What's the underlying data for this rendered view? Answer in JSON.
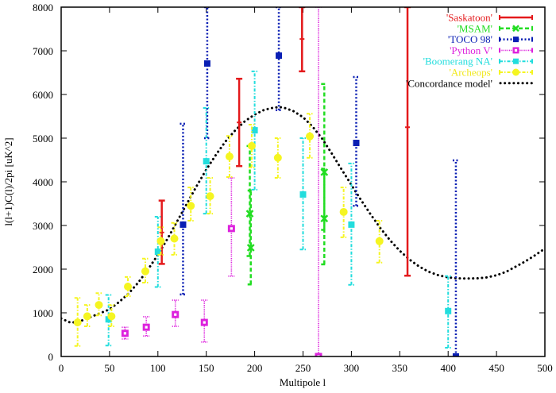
{
  "chart_data": {
    "type": "scatter",
    "title": "",
    "xlabel": "Multipole l",
    "ylabel": "l(l+1)C(l)/2pi [uK^2]",
    "xlim": [
      0,
      500
    ],
    "ylim": [
      0,
      8000
    ],
    "xticks": [
      "0",
      "50",
      "100",
      "150",
      "200",
      "250",
      "300",
      "350",
      "400",
      "450",
      "500"
    ],
    "xtick_values": [
      0,
      50,
      100,
      150,
      200,
      250,
      300,
      350,
      400,
      450,
      500
    ],
    "yticks": [
      "0",
      "1000",
      "2000",
      "3000",
      "4000",
      "5000",
      "6000",
      "7000",
      "8000"
    ],
    "ytick_values": [
      0,
      1000,
      2000,
      3000,
      4000,
      5000,
      6000,
      7000,
      8000
    ],
    "grid": false,
    "legend_position": "top-right",
    "series": [
      {
        "name": "'Saskatoon'",
        "color": "#e41a1c",
        "style": "solid",
        "marker": "tick",
        "points": [
          {
            "x": 104,
            "y": 2840,
            "ylow": 2120,
            "yhigh": 3570
          },
          {
            "x": 184,
            "y": 5360,
            "ylow": 4360,
            "yhigh": 6360
          },
          {
            "x": 249,
            "y": 7270,
            "ylow": 6530,
            "yhigh": 8000
          },
          {
            "x": 358,
            "y": 5250,
            "ylow": 1850,
            "yhigh": 8000
          }
        ]
      },
      {
        "name": "'MSAM'",
        "color": "#22dd22",
        "style": "dashed",
        "marker": "x",
        "points": [
          {
            "x": 195,
            "y": 3270,
            "ylow": 2300,
            "yhigh": 4820
          },
          {
            "x": 196,
            "y": 2490,
            "ylow": 1650,
            "yhigh": 3800
          },
          {
            "x": 272,
            "y": 4220,
            "ylow": 2900,
            "yhigh": 6240
          },
          {
            "x": 272,
            "y": 3160,
            "ylow": 2110,
            "yhigh": 4300
          }
        ]
      },
      {
        "name": "'TOCO 98'",
        "color": "#0a1fb4",
        "style": "dotted",
        "marker": "filled-square",
        "points": [
          {
            "x": 126,
            "y": 3020,
            "ylow": 1420,
            "yhigh": 5330
          },
          {
            "x": 151,
            "y": 6710,
            "ylow": 5000,
            "yhigh": 8000
          },
          {
            "x": 225,
            "y": 6890,
            "ylow": 5640,
            "yhigh": 8000
          },
          {
            "x": 305,
            "y": 4890,
            "ylow": 3450,
            "yhigh": 6400
          },
          {
            "x": 408,
            "y": 0,
            "ylow": 0,
            "yhigh": 4490
          }
        ]
      },
      {
        "name": "'Python V'",
        "color": "#dd22dd",
        "style": "dense-dotted",
        "marker": "open-square",
        "points": [
          {
            "x": 66,
            "y": 530,
            "ylow": 400,
            "yhigh": 670
          },
          {
            "x": 88,
            "y": 670,
            "ylow": 470,
            "yhigh": 910
          },
          {
            "x": 118,
            "y": 960,
            "ylow": 690,
            "yhigh": 1290
          },
          {
            "x": 148,
            "y": 780,
            "ylow": 330,
            "yhigh": 1290
          },
          {
            "x": 176,
            "y": 2930,
            "ylow": 1840,
            "yhigh": 4090
          },
          {
            "x": 266,
            "y": 0,
            "ylow": 0,
            "yhigh": 8000
          }
        ]
      },
      {
        "name": "'Boomerang NA'",
        "color": "#22dddd",
        "style": "dash-dot",
        "marker": "filled-square",
        "points": [
          {
            "x": 49,
            "y": 850,
            "ylow": 250,
            "yhigh": 1410
          },
          {
            "x": 100,
            "y": 2400,
            "ylow": 1590,
            "yhigh": 3200
          },
          {
            "x": 150,
            "y": 4470,
            "ylow": 3270,
            "yhigh": 5690
          },
          {
            "x": 200,
            "y": 5180,
            "ylow": 3820,
            "yhigh": 6530
          },
          {
            "x": 250,
            "y": 3710,
            "ylow": 2450,
            "yhigh": 5000
          },
          {
            "x": 300,
            "y": 3020,
            "ylow": 1640,
            "yhigh": 4420
          },
          {
            "x": 400,
            "y": 1040,
            "ylow": 200,
            "yhigh": 1840
          }
        ]
      },
      {
        "name": "'Archeops'",
        "color": "#f5f521",
        "style": "dash-dot",
        "marker": "filled-circle",
        "points": [
          {
            "x": 17,
            "y": 780,
            "ylow": 240,
            "yhigh": 1340
          },
          {
            "x": 27,
            "y": 920,
            "ylow": 690,
            "yhigh": 1180
          },
          {
            "x": 39,
            "y": 1180,
            "ylow": 940,
            "yhigh": 1450
          },
          {
            "x": 52,
            "y": 920,
            "ylow": 690,
            "yhigh": 1180
          },
          {
            "x": 69,
            "y": 1600,
            "ylow": 1380,
            "yhigh": 1820
          },
          {
            "x": 87,
            "y": 1950,
            "ylow": 1690,
            "yhigh": 2240
          },
          {
            "x": 103,
            "y": 2640,
            "ylow": 2330,
            "yhigh": 2960
          },
          {
            "x": 117,
            "y": 2700,
            "ylow": 2330,
            "yhigh": 3060
          },
          {
            "x": 134,
            "y": 3450,
            "ylow": 3110,
            "yhigh": 3870
          },
          {
            "x": 154,
            "y": 3670,
            "ylow": 3270,
            "yhigh": 4090
          },
          {
            "x": 174,
            "y": 4580,
            "ylow": 4110,
            "yhigh": 5050
          },
          {
            "x": 197,
            "y": 4820,
            "ylow": 4330,
            "yhigh": 5310
          },
          {
            "x": 224,
            "y": 4550,
            "ylow": 4090,
            "yhigh": 5000
          },
          {
            "x": 257,
            "y": 5040,
            "ylow": 4550,
            "yhigh": 5560
          },
          {
            "x": 292,
            "y": 3310,
            "ylow": 2730,
            "yhigh": 3870
          },
          {
            "x": 329,
            "y": 2640,
            "ylow": 2150,
            "yhigh": 3110
          }
        ]
      }
    ],
    "model": {
      "name": "'Concordance model'",
      "color": "#000000",
      "style": "dotted",
      "x": [
        0,
        10,
        20,
        30,
        40,
        50,
        60,
        70,
        80,
        90,
        100,
        110,
        120,
        130,
        140,
        150,
        160,
        170,
        180,
        190,
        200,
        210,
        220,
        225,
        230,
        240,
        250,
        260,
        270,
        280,
        290,
        300,
        310,
        320,
        330,
        340,
        350,
        360,
        370,
        380,
        390,
        400,
        410,
        420,
        430,
        440,
        450,
        460,
        470,
        480,
        490,
        500
      ],
      "y": [
        870,
        770,
        810,
        900,
        990,
        1080,
        1250,
        1450,
        1700,
        2000,
        2330,
        2700,
        3100,
        3500,
        3900,
        4280,
        4620,
        4930,
        5180,
        5390,
        5540,
        5650,
        5700,
        5710,
        5700,
        5620,
        5480,
        5260,
        4980,
        4640,
        4280,
        3930,
        3580,
        3250,
        2940,
        2660,
        2420,
        2220,
        2060,
        1940,
        1860,
        1810,
        1790,
        1785,
        1790,
        1810,
        1860,
        1940,
        2060,
        2180,
        2320,
        2470
      ]
    }
  }
}
